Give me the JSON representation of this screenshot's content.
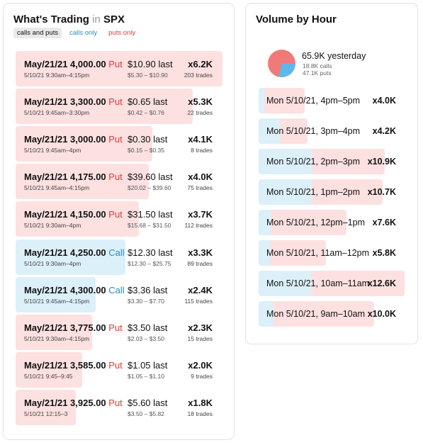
{
  "left_panel": {
    "title": "What's Trading",
    "title_in": "in",
    "symbol": "SPX",
    "filters": [
      {
        "label": "calls and puts"
      },
      {
        "label": "calls only"
      },
      {
        "label": "puts only"
      }
    ],
    "max_volume": 6.2,
    "rows": [
      {
        "contract": "May/21/21 4,000.00",
        "type": "Put",
        "time": "5/10/21 9:30am–4:15pm",
        "last": "$10.90 last",
        "range": "$5.30 – $10.90",
        "mult": "x6.2K",
        "trades": "203 trades",
        "volume": 6.2
      },
      {
        "contract": "May/21/21 3,300.00",
        "type": "Put",
        "time": "5/10/21 9:45am–3:30pm",
        "last": "$0.65 last",
        "range": "$0.42 – $0.76",
        "mult": "x5.3K",
        "trades": "22 trades",
        "volume": 5.3
      },
      {
        "contract": "May/21/21 3,000.00",
        "type": "Put",
        "time": "5/10/21 9:45am–4pm",
        "last": "$0.30 last",
        "range": "$0.15 – $0.35",
        "mult": "x4.1K",
        "trades": "8 trades",
        "volume": 4.1
      },
      {
        "contract": "May/21/21 4,175.00",
        "type": "Put",
        "time": "5/10/21 9:45am–4:15pm",
        "last": "$39.60 last",
        "range": "$20.02 – $39.60",
        "mult": "x4.0K",
        "trades": "75 trades",
        "volume": 4.0
      },
      {
        "contract": "May/21/21 4,150.00",
        "type": "Put",
        "time": "5/10/21 9:30am–4pm",
        "last": "$31.50 last",
        "range": "$15.68 – $31.50",
        "mult": "x3.7K",
        "trades": "112 trades",
        "volume": 3.7
      },
      {
        "contract": "May/21/21 4,250.00",
        "type": "Call",
        "time": "5/10/21 9:30am–4pm",
        "last": "$12.30 last",
        "range": "$12.30 – $25.75",
        "mult": "x3.3K",
        "trades": "89 trades",
        "volume": 3.3
      },
      {
        "contract": "May/21/21 4,300.00",
        "type": "Call",
        "time": "5/10/21 9:45am–4:15pm",
        "last": "$3.36 last",
        "range": "$3.30 – $7.70",
        "mult": "x2.4K",
        "trades": "115 trades",
        "volume": 2.4
      },
      {
        "contract": "May/21/21 3,775.00",
        "type": "Put",
        "time": "5/10/21 9:30am–4:15pm",
        "last": "$3.50 last",
        "range": "$2.03 – $3.50",
        "mult": "x2.3K",
        "trades": "15 trades",
        "volume": 2.3
      },
      {
        "contract": "May/21/21 3,585.00",
        "type": "Put",
        "time": "5/10/21 9:45–9:45",
        "last": "$1.05 last",
        "range": "$1.05 – $1.10",
        "mult": "x2.0K",
        "trades": "9 trades",
        "volume": 2.0
      },
      {
        "contract": "May/21/21 3,925.00",
        "type": "Put",
        "time": "5/10/21 12:15–3",
        "last": "$5.60 last",
        "range": "$3.50 – $5.82",
        "mult": "x1.8K",
        "trades": "18 trades",
        "volume": 1.8
      }
    ]
  },
  "right_panel": {
    "title": "Volume by Hour",
    "summary": {
      "total": "65.9K yesterday",
      "calls": "18.8K calls",
      "puts": "47.1K puts",
      "calls_value": 18.8,
      "puts_value": 47.1
    },
    "max_volume": 12.6,
    "hours": [
      {
        "label": "Mon 5/10/21, 4pm–5pm",
        "mult": "x4.0K",
        "total": 4.0,
        "calls_fraction": 0.13
      },
      {
        "label": "Mon 5/10/21, 3pm–4pm",
        "mult": "x4.2K",
        "total": 4.2,
        "calls_fraction": 0.44
      },
      {
        "label": "Mon 5/10/21, 2pm–3pm",
        "mult": "x10.9K",
        "total": 10.9,
        "calls_fraction": 0.42
      },
      {
        "label": "Mon 5/10/21, 1pm–2pm",
        "mult": "x10.7K",
        "total": 10.7,
        "calls_fraction": 0.43
      },
      {
        "label": "Mon 5/10/21, 12pm–1pm",
        "mult": "x7.6K",
        "total": 7.6,
        "calls_fraction": 0.14
      },
      {
        "label": "Mon 5/10/21, 11am–12pm",
        "mult": "x5.8K",
        "total": 5.8,
        "calls_fraction": 0.17
      },
      {
        "label": "Mon 5/10/21, 10am–11am",
        "mult": "x12.6K",
        "total": 12.6,
        "calls_fraction": 0.36
      },
      {
        "label": "Mon 5/10/21, 9am–10am",
        "mult": "x10.0K",
        "total": 10.0,
        "calls_fraction": 0.13
      }
    ]
  },
  "colors": {
    "put_bar": "#fde0e0",
    "call_bar": "#dcf0fa",
    "put_text": "#e23a3a",
    "call_text": "#2a8ec2",
    "pie_puts": "#f07a78",
    "pie_calls": "#5fb8ea"
  }
}
